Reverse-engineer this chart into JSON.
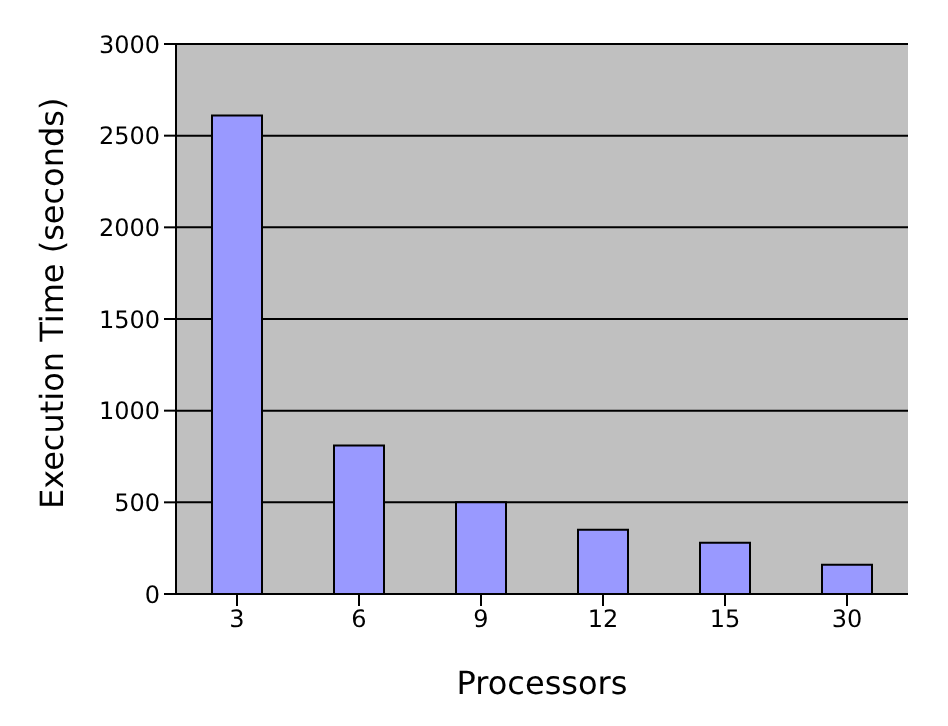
{
  "chart_data": {
    "type": "bar",
    "xlabel": "Processors",
    "ylabel": "Execution Time (seconds)",
    "categories": [
      "3",
      "6",
      "9",
      "12",
      "15",
      "30"
    ],
    "values": [
      2610,
      810,
      500,
      350,
      280,
      160
    ],
    "color": "#9999ff",
    "ylim": [
      0,
      3000
    ],
    "yticks": [
      0,
      500,
      1000,
      1500,
      2000,
      2500,
      3000
    ],
    "grid": "y"
  }
}
